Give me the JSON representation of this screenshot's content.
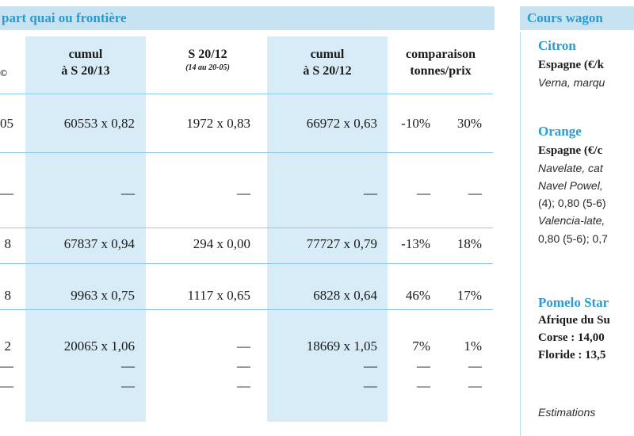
{
  "left_header": "part quai ou frontière",
  "right_header": "Cours wagon",
  "columns": [
    {
      "line1": "cumul",
      "line2": "à S 20/13"
    },
    {
      "line1": "S 20/12",
      "line2": "(14 au 20-05)"
    },
    {
      "line1": "cumul",
      "line2": "à S 20/12"
    },
    {
      "line1": "comparaison",
      "line2": "tonnes/prix"
    }
  ],
  "col0_header_fragment": "©",
  "rows": [
    {
      "c0": "05",
      "cumul13": "60553 x 0,82",
      "s2012": "1972 x 0,83",
      "cumul12": "66972 x 0,63",
      "t": "-10%",
      "p": "30%"
    },
    {
      "c0": "—",
      "cumul13": "—",
      "s2012": "—",
      "cumul12": "—",
      "t": "—",
      "p": "—"
    },
    {
      "c0": "8",
      "cumul13": "67837 x 0,94",
      "s2012": "294 x 0,00",
      "cumul12": "77727 x 0,79",
      "t": "-13%",
      "p": "18%"
    },
    {
      "c0": "8",
      "cumul13": "9963 x 0,75",
      "s2012": "1117 x 0,65",
      "cumul12": "6828 x 0,64",
      "t": "46%",
      "p": "17%"
    },
    {
      "c0": "2",
      "cumul13": "20065 x 1,06",
      "s2012": "—",
      "cumul12": "18669 x 1,05",
      "t": "7%",
      "p": "1%"
    },
    {
      "c0": "—",
      "cumul13": "—",
      "s2012": "—",
      "cumul12": "—",
      "t": "—",
      "p": "—"
    },
    {
      "c0": "—",
      "cumul13": "—",
      "s2012": "—",
      "cumul12": "—",
      "t": "—",
      "p": "—"
    }
  ],
  "right_panel": {
    "citron_title": "Citron",
    "citron_line1": "Espagne (€/k",
    "citron_line2": "Verna, marqu",
    "orange_title": "Orange",
    "orange_line1": "Espagne (€/c",
    "orange_line2": "Navelate, cat",
    "orange_line3": "Navel Powel,",
    "orange_line4": "(4); 0,80 (5-6)",
    "orange_line5": "Valencia-late,",
    "orange_line6": "0,80 (5-6); 0,7",
    "pomelo_title": "Pomelo Star",
    "pomelo_line1": "Afrique du Su",
    "pomelo_line2_label": "Corse :",
    "pomelo_line2_value": " 14,00",
    "pomelo_line3_label": "Floride :",
    "pomelo_line3_value": " 13,5",
    "footnote": "Estimations"
  }
}
